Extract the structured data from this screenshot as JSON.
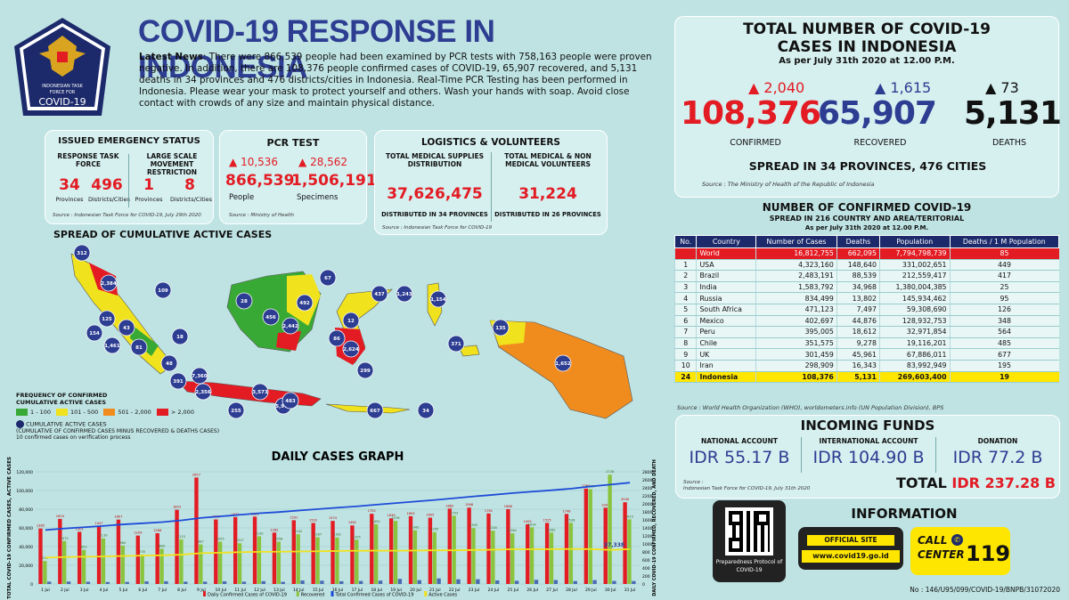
{
  "header": {
    "title": "COVID-19 RESPONSE IN INDONESIA",
    "logo_text_1": "INDONESIAN TASK",
    "logo_text_2": "FORCE FOR",
    "logo_text_3": "COVID-19",
    "news_label": "Latest News",
    "news_body": ": There were 866,539 people had been examined by PCR tests with 758,163 people were proven negative. In addition, there are 108,376 people confirmed cases of COVID-19, 65,907 recovered, and 5,131 deaths in 34 provinces and 476 districts/cities in Indonesia. Real-Time PCR Testing has been performed in Indonesia. Please wear your mask to protect yourself and others. Wash your hands with soap. Avoid close contact with crowds of any size and maintain physical distance."
  },
  "emergency": {
    "title": "ISSUED EMERGENCY STATUS",
    "col1_title": "RESPONSE TASK FORCE",
    "col2_title": "LARGE SCALE MOVEMENT RESTRICTION",
    "v1": "34",
    "l1": "Provinces",
    "v2": "496",
    "l2": "Districts/Cities",
    "v3": "1",
    "l3": "Provinces",
    "v4": "8",
    "l4": "Districts/Cities",
    "source": "Source : Indonesian Task Force for COVID-19, July 29th 2020"
  },
  "pcr": {
    "title": "PCR TEST",
    "people_delta": "10,536",
    "people": "866,539",
    "people_label": "People",
    "spec_delta": "28,562",
    "specimens": "1,506,191",
    "spec_label": "Specimens",
    "source": "Source : Ministry of Health"
  },
  "logistics": {
    "title": "LOGISTICS & VOLUNTEERS",
    "c1_title": "TOTAL MEDICAL SUPPLIES DISTRIBUTION",
    "c1_value": "37,626,475",
    "c1_foot": "DISTRIBUTED IN 34 PROVINCES",
    "c2_title": "TOTAL MEDICAL & NON MEDICAL VOLUNTEERS",
    "c2_value": "31,224",
    "c2_foot": "DISTRIBUTED IN 26 PROVINCES",
    "source": "Source : Indonesian Task Force for COVID-19"
  },
  "totals": {
    "title_1": "TOTAL NUMBER OF COVID-19",
    "title_2": "CASES IN INDONESIA",
    "asof": "As per July 31th 2020 at 12.00 P.M.",
    "confirmed_delta": "2,040",
    "confirmed": "108,376",
    "confirmed_label": "CONFIRMED",
    "recovered_delta": "1,615",
    "recovered": "65,907",
    "recovered_label": "RECOVERED",
    "deaths_delta": "73",
    "deaths": "5,131",
    "deaths_label": "DEATHS",
    "spread": "SPREAD IN 34 PROVINCES, 476 CITIES",
    "source": "Source : The Ministry of Health of the Republic of Indonesia"
  },
  "world": {
    "title": "NUMBER OF CONFIRMED COVID-19",
    "subtitle": "SPREAD IN 216 COUNTRY AND AREA/TERITORIAL",
    "asof": "As per July 31th 2020 at 12.00 P.M.",
    "headers": [
      "No.",
      "Country",
      "Number of Cases",
      "Deaths",
      "Population",
      "Deaths / 1 M Population"
    ],
    "rows": [
      [
        "",
        "World",
        "16,812,755",
        "662,095",
        "7,794,798,739",
        "85"
      ],
      [
        "1",
        "USA",
        "4,323,160",
        "148,640",
        "331,002,651",
        "449"
      ],
      [
        "2",
        "Brazil",
        "2,483,191",
        "88,539",
        "212,559,417",
        "417"
      ],
      [
        "3",
        "India",
        "1,583,792",
        "34,968",
        "1,380,004,385",
        "25"
      ],
      [
        "4",
        "Russia",
        "834,499",
        "13,802",
        "145,934,462",
        "95"
      ],
      [
        "5",
        "South Africa",
        "471,123",
        "7,497",
        "59,308,690",
        "126"
      ],
      [
        "6",
        "Mexico",
        "402,697",
        "44,876",
        "128,932,753",
        "348"
      ],
      [
        "7",
        "Peru",
        "395,005",
        "18,612",
        "32,971,854",
        "564"
      ],
      [
        "8",
        "Chile",
        "351,575",
        "9,278",
        "19,116,201",
        "485"
      ],
      [
        "9",
        "UK",
        "301,459",
        "45,961",
        "67,886,011",
        "677"
      ],
      [
        "10",
        "Iran",
        "298,909",
        "16,343",
        "83,992,949",
        "195"
      ],
      [
        "24",
        "Indonesia",
        "108,376",
        "5,131",
        "269,603,400",
        "19"
      ]
    ],
    "source": "Source : World Health Organization (WHO), worldometers.info (UN Population Division), BPS"
  },
  "funds": {
    "title": "INCOMING FUNDS",
    "national_label": "NATIONAL ACCOUNT",
    "national": "IDR 55.17 B",
    "international_label": "INTERNATIONAL ACCOUNT",
    "international": "IDR 104.90 B",
    "donation_label": "DONATION",
    "donation": "IDR 77.2 B",
    "total_label": "TOTAL",
    "total": "IDR 237.28 B",
    "source_1": "Source :",
    "source_2": "Indonesian Task Force for COVID-19, July 31th 2020"
  },
  "info": {
    "title": "INFORMATION",
    "qr_caption_1": "Preparedness Protocol of",
    "qr_caption_2": "COVID-19",
    "site_label": "OFFICIAL SITE",
    "site_url": "www.covid19.go.id",
    "call_1": "CALL",
    "call_2": "CENTER",
    "call_num": "119",
    "docno": "No : 146/U95/099/COVID-19/BNPB/31072020"
  },
  "map": {
    "title": "SPREAD OF CUMULATIVE ACTIVE CASES",
    "legend_title_1": "FREQUENCY OF CONFIRMED",
    "legend_title_2": "CUMULATIVE ACTIVE CASES",
    "legend_items": [
      {
        "label": "1 - 100",
        "color": "#39a935"
      },
      {
        "label": "101 - 500",
        "color": "#f0e21c"
      },
      {
        "label": "501 - 2,000",
        "color": "#f08c1e"
      },
      {
        "label": "> 2,000",
        "color": "#e31b23"
      }
    ],
    "circle_label": "CUMULATIVE ACTIVE CASES",
    "circle_note": "(CUMULATIVE OF CONFIRMED CASES MINUS RECOVERED & DEATHS CASES)",
    "verify_note": "10 confirmed cases on verification process",
    "bubbles": [
      "312",
      "2,384",
      "109",
      "125",
      "154",
      "43",
      "1,461",
      "81",
      "18",
      "48",
      "391",
      "7,360",
      "2,356",
      "255",
      "3,573",
      "5,976",
      "483",
      "28",
      "456",
      "2,442",
      "492",
      "67",
      "437",
      "1,243",
      "1,154",
      "12",
      "86",
      "2,624",
      "299",
      "371",
      "135",
      "1,652",
      "667",
      "34"
    ]
  },
  "chart_data": {
    "type": "bar",
    "title": "DAILY CASES GRAPH",
    "ylabel": "TOTAL COVID-19 CONFIRMED CASES, ACTIVE CASES",
    "y2label": "DAILY COVID-19 CONFIRMED, RECOVERED, AND DEATH",
    "yticks": [
      "0",
      "20,000",
      "40,000",
      "60,000",
      "80,000",
      "100,000",
      "120,000"
    ],
    "y2ticks": [
      "0",
      "200",
      "400",
      "600",
      "800",
      "1000",
      "1200",
      "1400",
      "1600",
      "1800",
      "2000",
      "2200",
      "2400",
      "2600",
      "2800"
    ],
    "ylim": [
      0,
      120000
    ],
    "y2lim": [
      0,
      2800
    ],
    "categories": [
      "1 Jul",
      "2 Jul",
      "3 Jul",
      "4 Jul",
      "5 Jul",
      "6 Jul",
      "7 Jul",
      "8 Jul",
      "9 Jul",
      "10 Jul",
      "11 Jul",
      "12 Jul",
      "13 Jul",
      "14 Jul",
      "15 Jul",
      "16 Jul",
      "17 Jul",
      "18 Jul",
      "19 Jul",
      "20 Jul",
      "21 Jul",
      "22 Jul",
      "23 Jul",
      "24 Jul",
      "25 Jul",
      "26 Jul",
      "27 Jul",
      "28 Jul",
      "29 Jul",
      "30 Jul",
      "31 Jul"
    ],
    "series": [
      {
        "name": "Daily Confirmed Cases of COVID-19",
        "color": "#e31b23",
        "values": [
          1385,
          1624,
          1301,
          1447,
          1607,
          1209,
          1268,
          1853,
          2657,
          1611,
          1671,
          1681,
          1282,
          1591,
          1522,
          1574,
          1462,
          1752,
          1639,
          1693,
          1655,
          1882,
          1906,
          1761,
          1868,
          1492,
          1525,
          1748,
          2381,
          1904,
          2040
        ]
      },
      {
        "name": "Recovered",
        "color": "#8ac43f",
        "values": [
          573,
          1072,
          853,
          1139,
          960,
          735,
          880,
          1115,
          987,
          1055,
          1017,
          1190,
          1056,
          1242,
          1167,
          1162,
          1105,
          1492,
          1576,
          1342,
          1295,
          1703,
          1395,
          1330,
          1264,
          1414,
          1282,
          1526,
          2366,
          2728,
          1615
        ]
      },
      {
        "name": "Death",
        "color": "#4a6bb3",
        "values": [
          58,
          61,
          56,
          49,
          52,
          65,
          68,
          58,
          58,
          66,
          58,
          71,
          54,
          87,
          82,
          69,
          76,
          85,
          127,
          96,
          139,
          117,
          118,
          89,
          80,
          103,
          98,
          74,
          96,
          76,
          73
        ]
      }
    ],
    "line_series": [
      {
        "name": "Total Confirmed Cases of COVID-19",
        "color": "#1c4bd8",
        "values": [
          57770,
          59394,
          60695,
          62142,
          63749,
          64958,
          66226,
          68079,
          70736,
          72347,
          74018,
          75699,
          76981,
          78572,
          80094,
          81668,
          83130,
          84882,
          86521,
          88214,
          89869,
          91751,
          93657,
          95418,
          97286,
          98778,
          100303,
          102051,
          104432,
          106336,
          108376
        ]
      },
      {
        "name": "Active Cases",
        "color": "#f0e21c",
        "values": [
          28230,
          28783,
          29170,
          29406,
          30022,
          30384,
          30666,
          31358,
          32985,
          33446,
          34052,
          34429,
          34538,
          34755,
          35022,
          35303,
          35553,
          35676,
          35617,
          35785,
          36002,
          36032,
          36382,
          36635,
          37146,
          37114,
          37259,
          37403,
          37331,
          36432,
          37338
        ]
      }
    ],
    "last_active_label": "37,338"
  }
}
